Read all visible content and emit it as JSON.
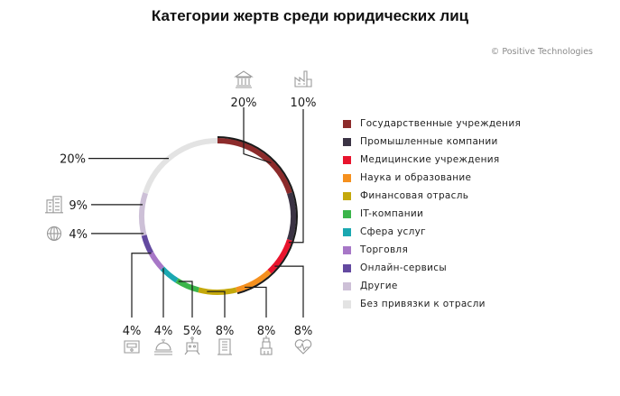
{
  "title": "Категории жертв среди юридических лиц",
  "copyright": "© Positive Technologies",
  "colors": {
    "leader_line": "#1a1a1a",
    "icon_stroke": "#9a9a9a"
  },
  "chart_data": {
    "type": "donut",
    "title": "Категории жертв среди юридических лиц",
    "legend_position": "right",
    "slices": [
      {
        "name": "Государственные учреждения",
        "value": 20,
        "label": "20%",
        "color": "#8c2b2b",
        "icon": "government-building-icon"
      },
      {
        "name": "Промышленные компании",
        "value": 10,
        "label": "10%",
        "color": "#3b3344",
        "icon": "factory-icon"
      },
      {
        "name": "Медицинские учреждения",
        "value": 8,
        "label": "8%",
        "color": "#e8142d",
        "icon": "heart-pulse-icon"
      },
      {
        "name": "Наука и образование",
        "value": 8,
        "label": "8%",
        "color": "#f5901e",
        "icon": "science-tower-icon"
      },
      {
        "name": "Финансовая отрасль",
        "value": 8,
        "label": "8%",
        "color": "#c4a80b",
        "icon": "finance-building-icon"
      },
      {
        "name": "IT-компании",
        "value": 5,
        "label": "5%",
        "color": "#3bb54a",
        "icon": "robot-icon"
      },
      {
        "name": "Сфера услуг",
        "value": 4,
        "label": "4%",
        "color": "#1aa8b1",
        "icon": "service-bell-icon"
      },
      {
        "name": "Торговля",
        "value": 4,
        "label": "4%",
        "color": "#a777c7",
        "icon": "cash-register-icon"
      },
      {
        "name": "Онлайн-сервисы",
        "value": 4,
        "label": "4%",
        "color": "#6349a0",
        "icon": "globe-icon"
      },
      {
        "name": "Другие",
        "value": 9,
        "label": "9%",
        "color": "#cdc0d7",
        "icon": "office-buildings-icon"
      },
      {
        "name": "Без привязки к отрасли",
        "value": 20,
        "label": "20%",
        "color": "#e3e3e3",
        "icon": ""
      }
    ]
  }
}
